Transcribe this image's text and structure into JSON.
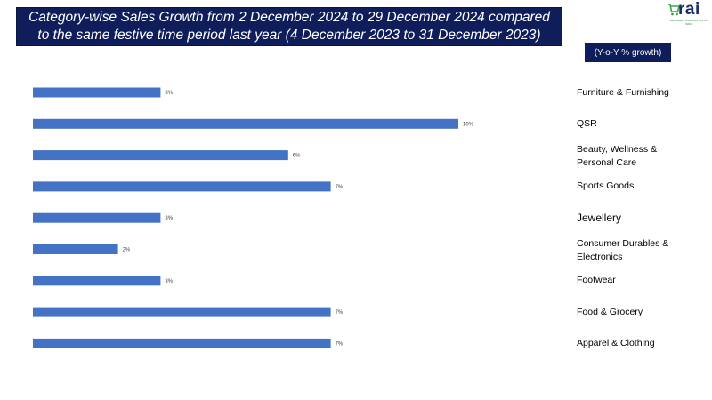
{
  "title": "Category-wise Sales Growth from 2 December 2024 to 29 December 2024 compared to the same festive time period last year (4 December 2023 to 31 December 2023)",
  "logo": {
    "text": "rai",
    "subtitle": "RETAILERS ASSOCIATION OF INDIA",
    "icon": "shopping-cart-icon",
    "colors": {
      "cart": "#3aa64a",
      "text": "#1a2a6c"
    }
  },
  "unit_label": "(Y-o-Y % growth)",
  "colors": {
    "title_bg": "#0f1e5a",
    "bar": "#4472c4",
    "value_label": "#404040"
  },
  "chart_data": {
    "type": "bar",
    "orientation": "horizontal",
    "title": "Category-wise Sales Growth from 2 December 2024 to 29 December 2024 compared to the same festive time period last year (4 December 2023 to 31 December 2023)",
    "unit": "(Y-o-Y % growth)",
    "categories": [
      "Furniture & Furnishing",
      "QSR",
      "Beauty, Wellness & Personal Care",
      "Sports Goods",
      "Jewellery",
      "Consumer Durables & Electronics",
      "Footwear",
      "Food & Grocery",
      "Apparel & Clothing"
    ],
    "values": [
      3,
      10,
      6,
      7,
      3,
      2,
      3,
      7,
      7
    ],
    "value_labels": [
      "3%",
      "10%",
      "6%",
      "7%",
      "3%",
      "2%",
      "3%",
      "7%",
      "7%"
    ],
    "category_label_lines": [
      [
        "Furniture & Furnishing"
      ],
      [
        "QSR"
      ],
      [
        "Beauty, Wellness &",
        "Personal Care"
      ],
      [
        "Sports Goods"
      ],
      [
        "Jewellery"
      ],
      [
        "Consumer Durables &",
        "Electronics"
      ],
      [
        "Footwear"
      ],
      [
        "Food & Grocery"
      ],
      [
        "Apparel & Clothing"
      ]
    ],
    "xlim": [
      0,
      10
    ],
    "grid": false,
    "legend": "none",
    "bar_color": "#4472c4"
  }
}
